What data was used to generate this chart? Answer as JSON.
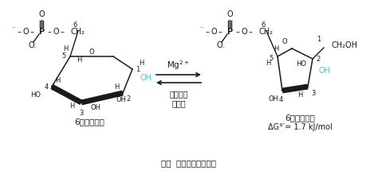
{
  "bg_color": "#ffffff",
  "fig_width": 4.74,
  "fig_height": 2.3,
  "dpi": 100,
  "caption": "图：  磷酸葡糖的异构化",
  "label_left": "6－磷酸葡糖",
  "label_right": "6－磷酸果糖",
  "delta_g": "ΔG°′= 1.7 kJ/mol",
  "arrow_label_top": "Mg$^{2+}$",
  "arrow_label_bottom": "磷酸己糖\n异构酶",
  "cyan_color": "#56c8c8",
  "black": "#1a1a1a",
  "gray": "#555555",
  "fs_base": 7.0,
  "fs_small": 6.0,
  "fs_caption": 7.5
}
